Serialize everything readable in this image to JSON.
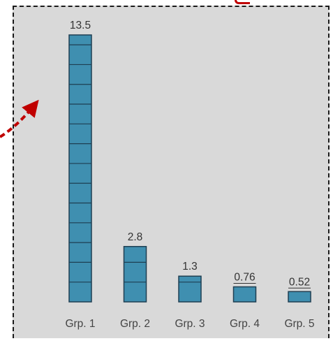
{
  "chart_data": {
    "type": "bar",
    "categories": [
      "Grp. 1",
      "Grp. 2",
      "Grp. 3",
      "Grp. 4",
      "Grp. 5"
    ],
    "values": [
      13.5,
      2.8,
      1.3,
      0.76,
      0.52
    ],
    "data_labels": [
      "13.5",
      "2.8",
      "1.3",
      "0.76",
      "0.52"
    ],
    "data_label_underlined": [
      false,
      false,
      false,
      true,
      true
    ],
    "ylim": [
      0,
      14
    ],
    "bar_segment_unit": 1,
    "grid": false,
    "colors": {
      "bar_fill": "#3f8fb0",
      "bar_edge": "#1f3f52",
      "panel_bg": "#d9d9d9",
      "arrow": "#c00000"
    }
  }
}
